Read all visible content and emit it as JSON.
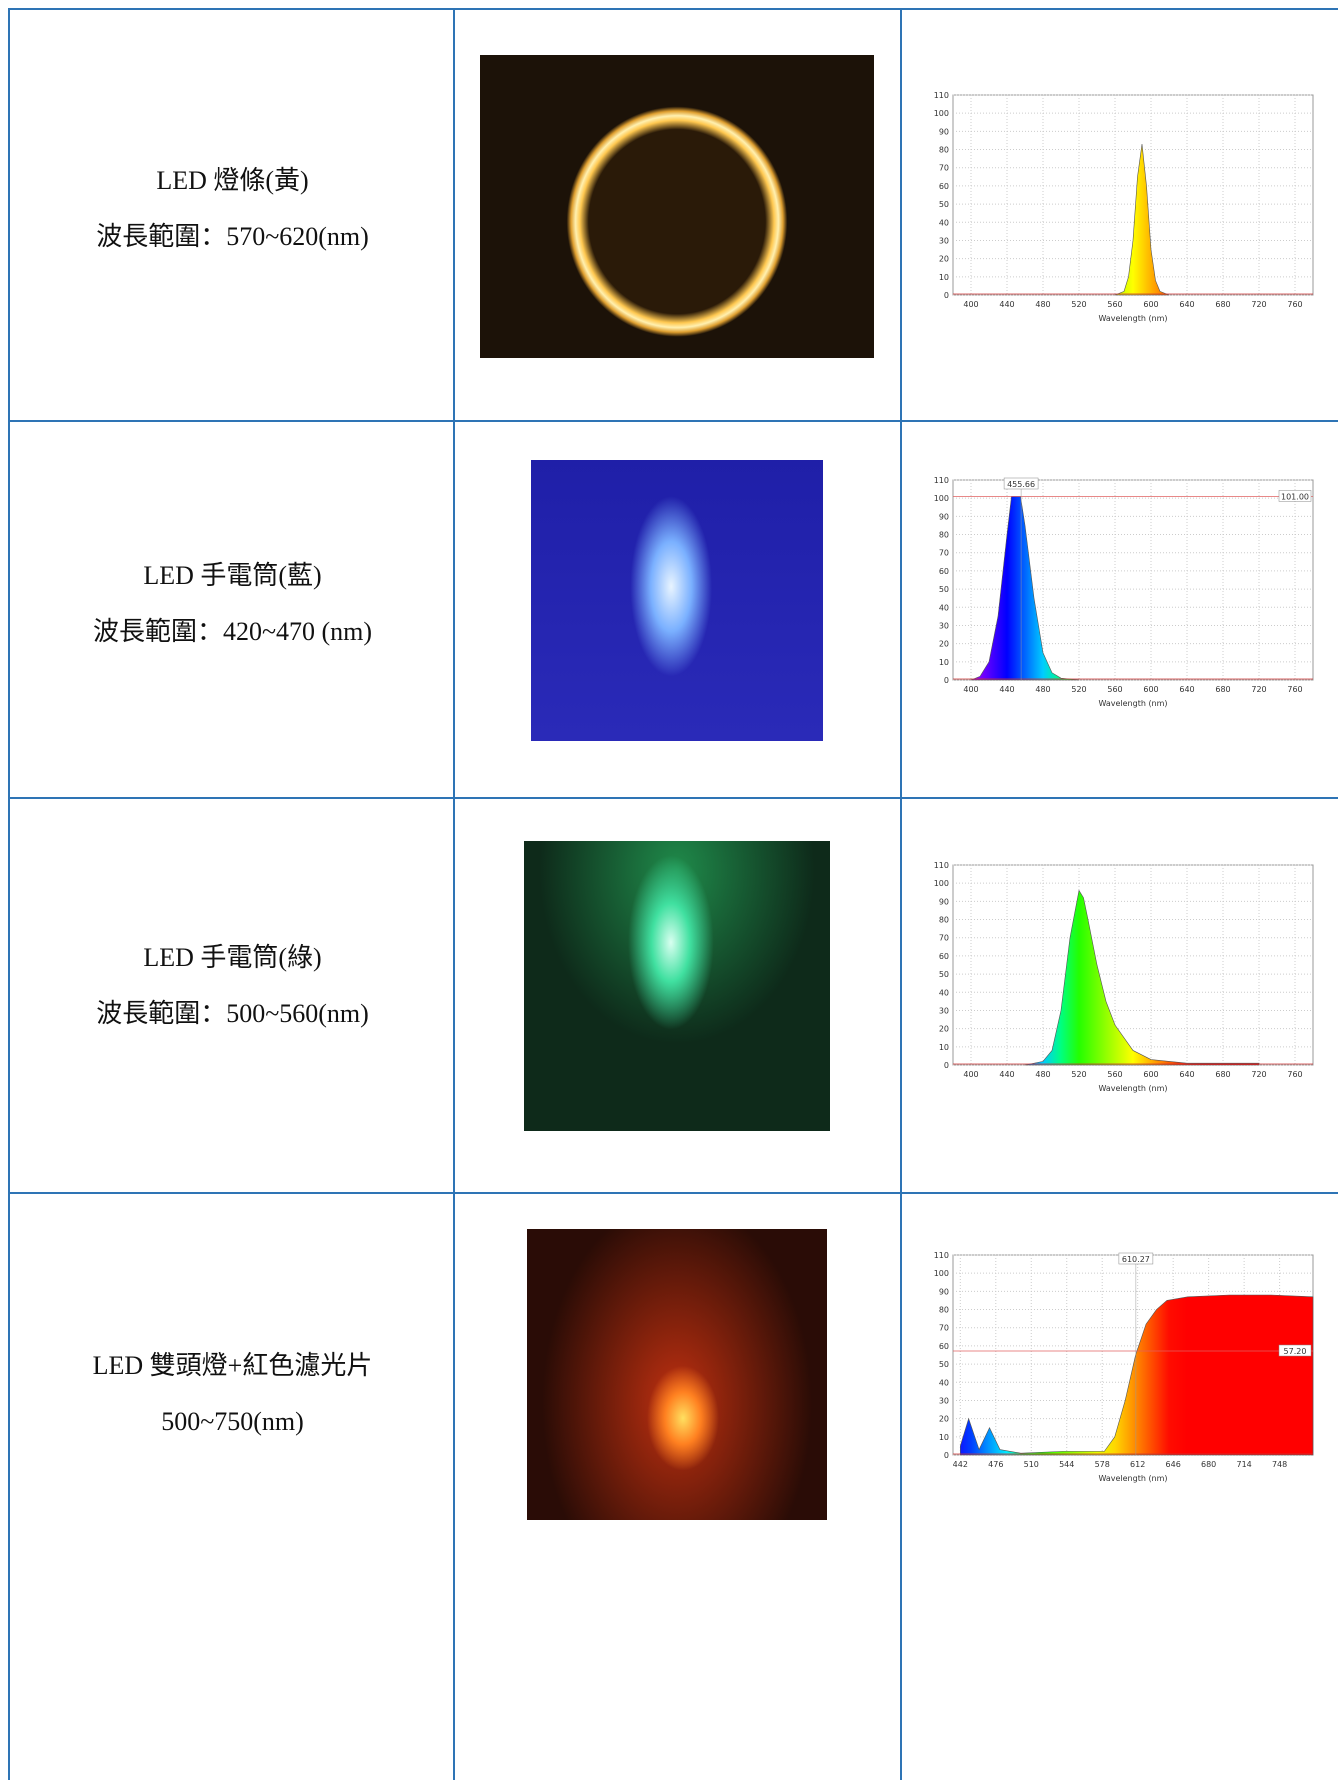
{
  "rows": [
    {
      "lines": [
        "LED 燈條(黃)",
        "波長範圍：570~620(nm)"
      ],
      "chart": {
        "type": "area",
        "xlabel": "Wavelength (nm)",
        "xlim": [
          380,
          780
        ],
        "ylim": [
          0,
          110
        ],
        "xticks": [
          400,
          440,
          480,
          520,
          560,
          600,
          640,
          680,
          720,
          760
        ],
        "yticks": [
          0,
          10,
          20,
          30,
          40,
          50,
          60,
          70,
          80,
          90,
          100,
          110
        ],
        "x": [
          560,
          570,
          575,
          580,
          585,
          590,
          595,
          600,
          605,
          610,
          620
        ],
        "values": [
          0,
          2,
          10,
          30,
          65,
          83,
          60,
          25,
          8,
          2,
          0
        ]
      }
    },
    {
      "lines": [
        "LED 手電筒(藍)",
        "波長範圍：420~470 (nm)"
      ],
      "chart": {
        "type": "area",
        "xlabel": "Wavelength (nm)",
        "xlim": [
          380,
          780
        ],
        "ylim": [
          0,
          110
        ],
        "xticks": [
          400,
          440,
          480,
          520,
          560,
          600,
          640,
          680,
          720,
          760
        ],
        "yticks": [
          0,
          10,
          20,
          30,
          40,
          50,
          60,
          70,
          80,
          90,
          100,
          110
        ],
        "x": [
          400,
          410,
          420,
          430,
          440,
          445,
          450,
          455,
          460,
          470,
          480,
          490,
          500,
          520
        ],
        "values": [
          0,
          2,
          10,
          35,
          80,
          101,
          101,
          101,
          85,
          45,
          15,
          4,
          1,
          0
        ],
        "vmarker": 455.66,
        "hline": {
          "value": 101,
          "label": "101.00"
        }
      }
    },
    {
      "lines": [
        "LED 手電筒(綠)",
        "波長範圍：500~560(nm)"
      ],
      "chart": {
        "type": "area",
        "xlabel": "Wavelength (nm)",
        "xlim": [
          380,
          780
        ],
        "ylim": [
          0,
          110
        ],
        "xticks": [
          400,
          440,
          480,
          520,
          560,
          600,
          640,
          680,
          720,
          760
        ],
        "yticks": [
          0,
          10,
          20,
          30,
          40,
          50,
          60,
          70,
          80,
          90,
          100,
          110
        ],
        "x": [
          460,
          480,
          490,
          500,
          510,
          520,
          525,
          530,
          540,
          550,
          560,
          580,
          600,
          640,
          720
        ],
        "values": [
          0,
          2,
          8,
          30,
          70,
          96,
          92,
          80,
          55,
          35,
          22,
          8,
          3,
          1,
          1
        ]
      }
    },
    {
      "lines": [
        "LED 雙頭燈+紅色濾光片",
        "500~750(nm)"
      ],
      "chart": {
        "type": "area",
        "xlabel": "Wavelength (nm)",
        "xlim": [
          435,
          780
        ],
        "ylim": [
          0,
          110
        ],
        "xticks": [
          442,
          476,
          510,
          544,
          578,
          612,
          646,
          680,
          714,
          748
        ],
        "yticks": [
          0,
          10,
          20,
          30,
          40,
          50,
          60,
          70,
          80,
          90,
          100,
          110
        ],
        "x": [
          442,
          450,
          460,
          470,
          480,
          500,
          540,
          580,
          590,
          600,
          610,
          620,
          630,
          640,
          660,
          700,
          740,
          780
        ],
        "values": [
          5,
          20,
          3,
          15,
          3,
          1,
          2,
          2,
          10,
          30,
          55,
          72,
          80,
          85,
          87,
          88,
          88,
          87
        ],
        "vmarker": 610.27,
        "hline": {
          "value": 57.2,
          "label": "57.20"
        }
      }
    }
  ]
}
